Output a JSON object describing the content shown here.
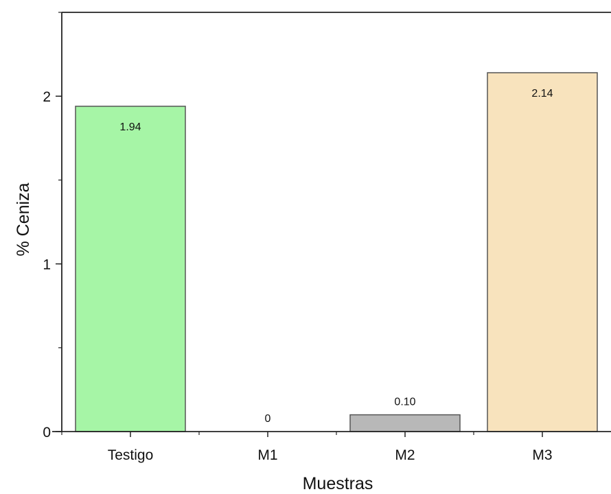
{
  "chart_data": {
    "type": "bar",
    "categories": [
      "Testigo",
      "M1",
      "M2",
      "M3"
    ],
    "values": [
      1.94,
      0,
      0.1,
      2.14
    ],
    "data_labels": [
      "1.94",
      "0",
      "0.10",
      "2.14"
    ],
    "bar_colors": [
      "#a6f5a6",
      "#ffffff",
      "#b8b8b8",
      "#f8e3bd"
    ],
    "bar_stroke": "#555555",
    "title": "",
    "xlabel": "Muestras",
    "ylabel": "% Ceniza",
    "ylim": [
      0,
      2.5
    ],
    "yticks": [
      0,
      1,
      2
    ],
    "ytick_labels": [
      "0",
      "1",
      "2"
    ],
    "y_minor_step": 0.5,
    "grid": false,
    "legend": "none"
  }
}
